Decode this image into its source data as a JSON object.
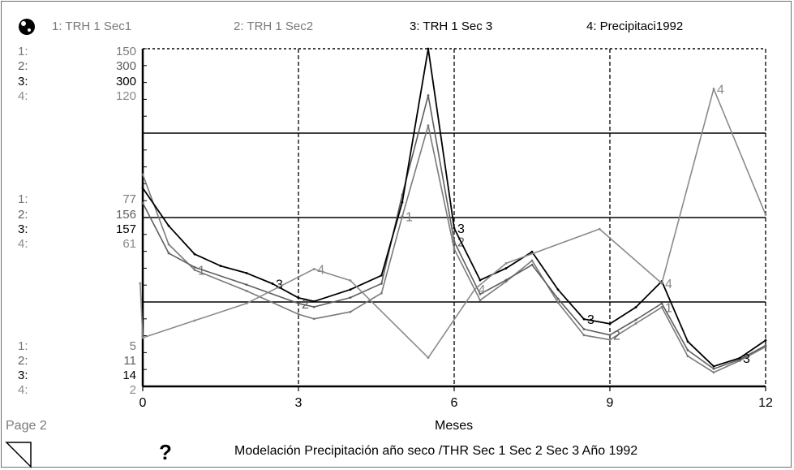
{
  "colors": {
    "series_1": "#7a7a7a",
    "series_2": "#5e5e5e",
    "series_3": "#000000",
    "series_4": "#8a8a8a",
    "axis": "#000000",
    "grid": "#000000",
    "page_label": "#7a7a7a"
  },
  "icons": {
    "status": "globe-icon",
    "help": "question-mark-icon",
    "page_turn": "page-corner-icon"
  },
  "legend": [
    {
      "label": "1: TRH 1 Sec1"
    },
    {
      "label": "2: TRH 1 Sec2"
    },
    {
      "label": "3: TRH 1 Sec 3"
    },
    {
      "label": "4: Precipitaci1992"
    }
  ],
  "scale_labels": {
    "top": [
      {
        "id": "1:",
        "value": "150"
      },
      {
        "id": "2:",
        "value": "300"
      },
      {
        "id": "3:",
        "value": "300"
      },
      {
        "id": "4:",
        "value": "120"
      }
    ],
    "middle": [
      {
        "id": "1:",
        "value": "77"
      },
      {
        "id": "2:",
        "value": "156"
      },
      {
        "id": "3:",
        "value": "157"
      },
      {
        "id": "4:",
        "value": "61"
      }
    ],
    "bottom": [
      {
        "id": "1:",
        "value": "5"
      },
      {
        "id": "2:",
        "value": "11"
      },
      {
        "id": "3:",
        "value": "14"
      },
      {
        "id": "4:",
        "value": "2"
      }
    ]
  },
  "footer": {
    "page_label": "Page 2",
    "help_symbol": "?",
    "caption": "Modelación Precipitación año seco  /THR Sec 1 Sec 2 Sec 3  Año 1992"
  },
  "chart_data": {
    "type": "line",
    "title": "",
    "xlabel": "Meses",
    "ylabel": "",
    "xlim": [
      0,
      12
    ],
    "x_ticks": [
      "0",
      "3",
      "6",
      "9",
      "12"
    ],
    "grid": true,
    "legend_position": "top",
    "series": [
      {
        "name": "1: TRH 1 Sec1",
        "ylim": [
          5,
          150
        ],
        "x": [
          0,
          0.5,
          1,
          2,
          3,
          3.3,
          4,
          4.6,
          5,
          5.5,
          6,
          6.5,
          7,
          7.5,
          8,
          8.5,
          9,
          9.5,
          10,
          10.5,
          11,
          11.5,
          12
        ],
        "values": [
          96,
          66,
          55,
          46,
          36,
          34,
          37,
          45,
          78,
          117,
          64,
          42,
          50,
          59,
          41,
          27,
          25,
          32,
          39,
          18,
          11,
          16,
          22
        ]
      },
      {
        "name": "2: TRH 1 Sec2",
        "ylim": [
          11,
          300
        ],
        "x": [
          0,
          0.5,
          1,
          2,
          3,
          3.3,
          4,
          4.6,
          5,
          5.5,
          6,
          6.5,
          7,
          7.5,
          8,
          8.5,
          9,
          9.5,
          10,
          10.5,
          11,
          11.5,
          12
        ],
        "values": [
          168,
          125,
          113,
          98,
          82,
          79,
          87,
          99,
          175,
          260,
          135,
          90,
          102,
          115,
          86,
          60,
          55,
          68,
          82,
          42,
          26,
          34,
          46
        ]
      },
      {
        "name": "3: TRH 1 Sec 3",
        "ylim": [
          14,
          300
        ],
        "x": [
          0,
          0.5,
          1,
          1.5,
          2,
          2.5,
          3,
          3.3,
          4,
          4.6,
          5,
          5.5,
          6,
          6.5,
          7,
          7.5,
          8,
          8.5,
          9,
          9.5,
          10,
          10.5,
          11,
          11.5,
          12
        ],
        "values": [
          182,
          150,
          126,
          116,
          110,
          101,
          89,
          86,
          96,
          108,
          170,
          300,
          148,
          104,
          114,
          128,
          96,
          71,
          67,
          81,
          103,
          52,
          31,
          38,
          53
        ]
      },
      {
        "name": "4: Precipitaci1992",
        "ylim": [
          2,
          120
        ],
        "x": [
          -0.05,
          0,
          1,
          2,
          3.3,
          4,
          5.5,
          6.4,
          7,
          8.8,
          10,
          11,
          12
        ],
        "values": [
          38,
          19,
          25,
          31,
          43,
          39,
          12,
          36,
          45,
          57,
          38,
          106,
          62
        ]
      }
    ]
  }
}
